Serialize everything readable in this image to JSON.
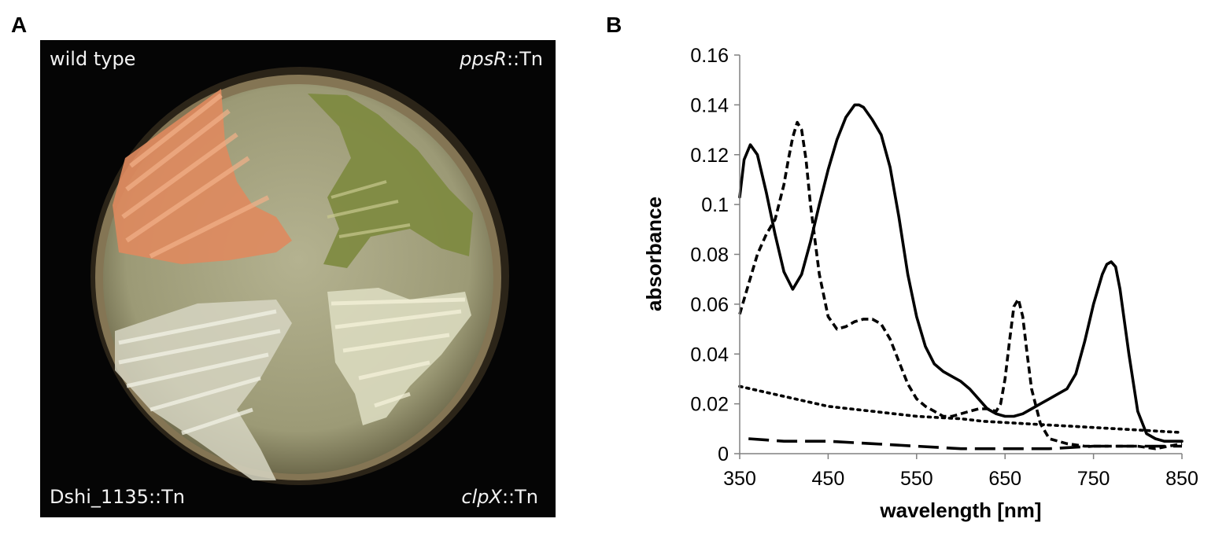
{
  "figure": {
    "panel_a": {
      "letter": "A",
      "labels": {
        "top_left": "wild type",
        "top_right_gene": "ppsR",
        "top_right_suffix": "::Tn",
        "bottom_left": "Dshi_1135::Tn",
        "bottom_right_gene": "clpX",
        "bottom_right_suffix": "::Tn"
      },
      "colors": {
        "background": "#050505",
        "agar": "#a8a884",
        "wild_type_streak": "#e0895e",
        "ppsR_streak": "#7e8a40",
        "dshi_streak": "#d8d8c6",
        "clpX_streak": "#dcdcc0"
      }
    },
    "panel_b": {
      "letter": "B"
    }
  },
  "chart_data": {
    "type": "line",
    "xlabel": "wavelength [nm]",
    "ylabel": "absorbance",
    "xlim": [
      350,
      850
    ],
    "ylim": [
      0,
      0.16
    ],
    "x_ticks": [
      350,
      450,
      550,
      650,
      750,
      850
    ],
    "y_ticks": [
      0,
      0.02,
      0.04,
      0.06,
      0.08,
      0.1,
      0.12,
      0.14,
      0.16
    ],
    "y_tick_labels": [
      "0",
      "0.02",
      "0.04",
      "0.06",
      "0.08",
      "0.1",
      "0.12",
      "0.14",
      "0.16"
    ],
    "grid": false,
    "legend": "none",
    "series": [
      {
        "style": "solid",
        "x": [
          350,
          355,
          362,
          370,
          380,
          390,
          400,
          410,
          420,
          430,
          440,
          450,
          460,
          470,
          480,
          485,
          490,
          500,
          510,
          520,
          530,
          540,
          550,
          560,
          570,
          580,
          590,
          600,
          610,
          620,
          630,
          640,
          650,
          660,
          670,
          680,
          690,
          700,
          710,
          720,
          730,
          740,
          750,
          760,
          765,
          770,
          775,
          780,
          790,
          800,
          810,
          820,
          830,
          840,
          850
        ],
        "values": [
          0.103,
          0.118,
          0.124,
          0.12,
          0.105,
          0.088,
          0.073,
          0.066,
          0.072,
          0.085,
          0.1,
          0.114,
          0.126,
          0.135,
          0.14,
          0.14,
          0.139,
          0.134,
          0.128,
          0.115,
          0.095,
          0.072,
          0.055,
          0.043,
          0.036,
          0.033,
          0.031,
          0.029,
          0.026,
          0.022,
          0.018,
          0.016,
          0.015,
          0.015,
          0.016,
          0.018,
          0.02,
          0.022,
          0.024,
          0.026,
          0.032,
          0.045,
          0.06,
          0.072,
          0.076,
          0.077,
          0.075,
          0.066,
          0.04,
          0.017,
          0.008,
          0.006,
          0.005,
          0.005,
          0.005
        ]
      },
      {
        "style": "short-dash",
        "x": [
          350,
          360,
          370,
          380,
          390,
          400,
          405,
          410,
          415,
          420,
          425,
          430,
          440,
          450,
          460,
          470,
          480,
          490,
          500,
          510,
          520,
          530,
          540,
          550,
          560,
          570,
          580,
          590,
          600,
          610,
          620,
          630,
          640,
          645,
          650,
          655,
          660,
          665,
          670,
          675,
          680,
          690,
          700,
          720,
          740,
          760,
          780,
          800,
          820,
          850
        ],
        "values": [
          0.056,
          0.068,
          0.08,
          0.088,
          0.094,
          0.108,
          0.118,
          0.127,
          0.133,
          0.13,
          0.118,
          0.1,
          0.072,
          0.055,
          0.05,
          0.051,
          0.053,
          0.054,
          0.054,
          0.052,
          0.046,
          0.037,
          0.028,
          0.022,
          0.019,
          0.017,
          0.015,
          0.015,
          0.016,
          0.017,
          0.018,
          0.018,
          0.017,
          0.02,
          0.03,
          0.045,
          0.059,
          0.062,
          0.055,
          0.04,
          0.026,
          0.012,
          0.006,
          0.004,
          0.003,
          0.003,
          0.003,
          0.003,
          0.002,
          0.004
        ]
      },
      {
        "style": "dotted",
        "x": [
          350,
          375,
          400,
          425,
          450,
          475,
          500,
          525,
          550,
          575,
          600,
          625,
          650,
          675,
          700,
          725,
          750,
          775,
          800,
          825,
          850
        ],
        "values": [
          0.027,
          0.025,
          0.023,
          0.021,
          0.019,
          0.018,
          0.017,
          0.016,
          0.015,
          0.0145,
          0.014,
          0.013,
          0.0125,
          0.012,
          0.0115,
          0.011,
          0.0105,
          0.01,
          0.0095,
          0.009,
          0.0085
        ]
      },
      {
        "style": "long-dash",
        "x": [
          360,
          400,
          450,
          500,
          550,
          600,
          650,
          700,
          750,
          800,
          850
        ],
        "values": [
          0.006,
          0.005,
          0.005,
          0.004,
          0.003,
          0.002,
          0.002,
          0.002,
          0.003,
          0.003,
          0.003
        ]
      }
    ]
  }
}
